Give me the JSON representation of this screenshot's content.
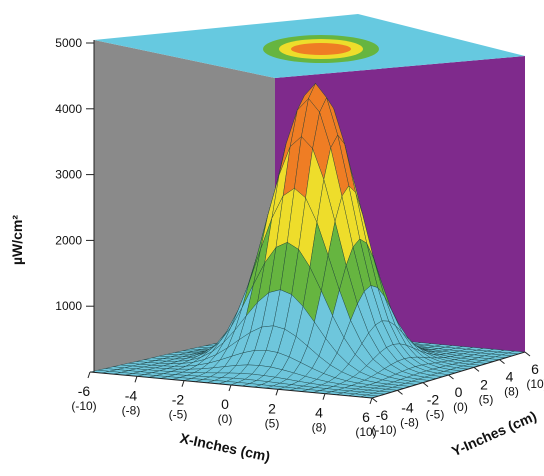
{
  "chart_data": {
    "type": "surface",
    "title": "",
    "zlabel": "µW/cm²",
    "xlabel": "X-Inches (cm)",
    "ylabel": "Y-Inches (cm)",
    "zlim": [
      0,
      5000
    ],
    "z_ticks": [
      "1000",
      "2000",
      "3000",
      "4000",
      "5000"
    ],
    "x_ticks": [
      {
        "inch": "-6",
        "cm": "(-10)"
      },
      {
        "inch": "-4",
        "cm": "(-8)"
      },
      {
        "inch": "-2",
        "cm": "(-5)"
      },
      {
        "inch": "0",
        "cm": "(0)"
      },
      {
        "inch": "2",
        "cm": "(5)"
      },
      {
        "inch": "4",
        "cm": "(8)"
      },
      {
        "inch": "6",
        "cm": "(10)"
      }
    ],
    "y_ticks": [
      {
        "inch": "-6",
        "cm": "(-10)"
      },
      {
        "inch": "-4",
        "cm": "(-8)"
      },
      {
        "inch": "-2",
        "cm": "(-5)"
      },
      {
        "inch": "0",
        "cm": "(0)"
      },
      {
        "inch": "2",
        "cm": "(5)"
      },
      {
        "inch": "4",
        "cm": "(8)"
      },
      {
        "inch": "6",
        "cm": "(10)"
      }
    ],
    "peak": 4250,
    "peak_at": {
      "x_in": 0,
      "y_in": 0
    },
    "spread_in": 1.6,
    "bands": [
      {
        "from": 0,
        "to": 1000,
        "color": "#6ec6dc"
      },
      {
        "from": 1000,
        "to": 2000,
        "color": "#66b540"
      },
      {
        "from": 2000,
        "to": 3000,
        "color": "#eedd2b"
      },
      {
        "from": 3000,
        "to": 5000,
        "color": "#ef7d24"
      }
    ],
    "walls": {
      "top": "#66c9e0",
      "left": "#8a8a8a",
      "right": "#7f2a8c"
    }
  }
}
